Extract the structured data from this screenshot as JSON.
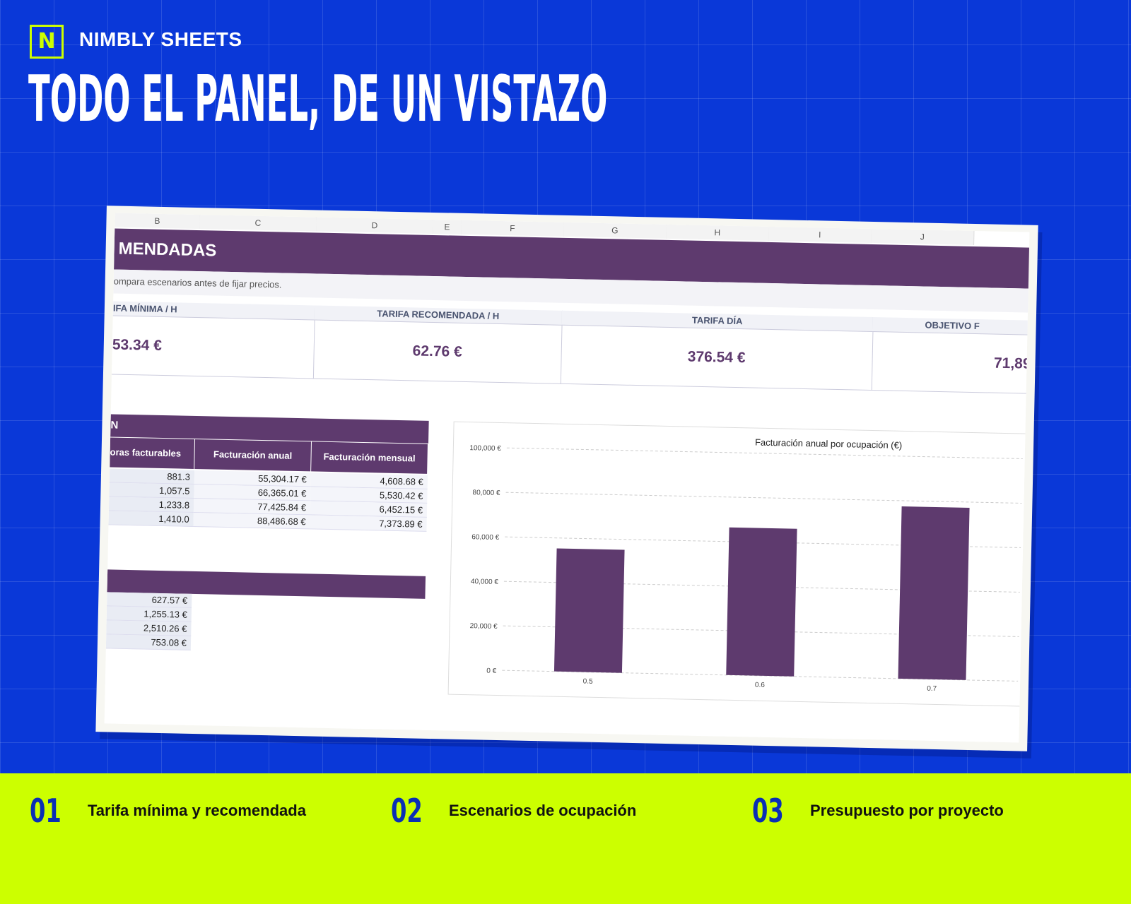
{
  "brand": {
    "logo_letter": "N",
    "name": "NIMBLY SHEETS"
  },
  "headline": "TODO EL PANEL, DE UN VISTAZO",
  "sheet": {
    "columns": [
      "B",
      "C",
      "D",
      "E",
      "F",
      "G",
      "H",
      "I",
      "J"
    ],
    "title": "MENDADAS",
    "subtitle": "ompara escenarios antes de fijar precios.",
    "kpis": [
      {
        "label": "IFA MÍNIMA / H",
        "value": "53.34 €"
      },
      {
        "label": "TARIFA RECOMENDADA / H",
        "value": "62.76 €"
      },
      {
        "label": "TARIFA DÍA",
        "value": "376.54 €"
      },
      {
        "label": "OBJETIVO F",
        "value": "71,89"
      }
    ],
    "scenario_table": {
      "title": "N",
      "header": [
        "oras facturables",
        "Facturación anual",
        "Facturación mensual"
      ],
      "rows": [
        [
          "881.3",
          "55,304.17 €",
          "4,608.68 €"
        ],
        [
          "1,057.5",
          "66,365.01 €",
          "5,530.42 €"
        ],
        [
          "1,233.8",
          "77,425.84 €",
          "6,452.15 €"
        ],
        [
          "1,410.0",
          "88,486.68 €",
          "7,373.89 €"
        ]
      ]
    },
    "budget_rows": [
      "627.57 €",
      "1,255.13 €",
      "2,510.26 €",
      "753.08 €"
    ]
  },
  "chart_data": {
    "type": "bar",
    "title": "Facturación anual por ocupación (€)",
    "categories": [
      "0.5",
      "0.6",
      "0.7"
    ],
    "values": [
      55304.17,
      66365.01,
      77425.84
    ],
    "color": "#5e3a6e",
    "ylim": [
      0,
      100000
    ],
    "yticks": [
      {
        "value": 0,
        "label": "0 €"
      },
      {
        "value": 20000,
        "label": "20,000 €"
      },
      {
        "value": 40000,
        "label": "40,000 €"
      },
      {
        "value": 60000,
        "label": "60,000 €"
      },
      {
        "value": 80000,
        "label": "80,000 €"
      },
      {
        "value": 100000,
        "label": "100,000 €"
      }
    ],
    "grid": true
  },
  "features": [
    {
      "number": "01",
      "label": "Tarifa mínima y recomendada"
    },
    {
      "number": "02",
      "label": "Escenarios de ocupación"
    },
    {
      "number": "03",
      "label": "Presupuesto por proyecto"
    }
  ]
}
